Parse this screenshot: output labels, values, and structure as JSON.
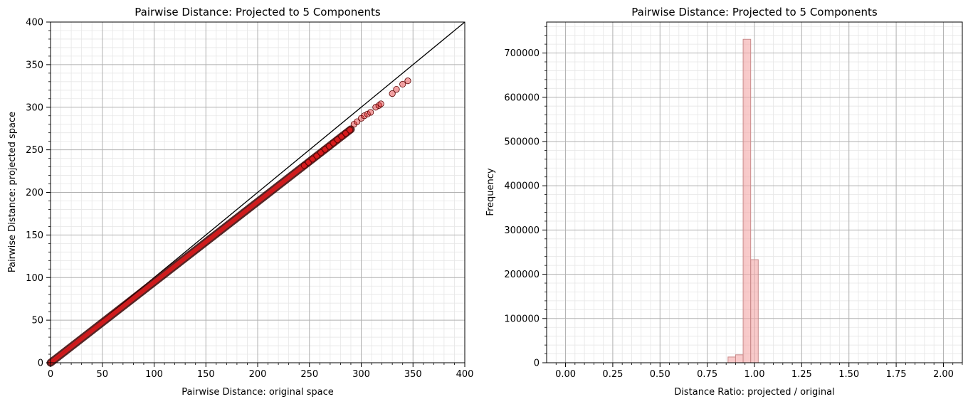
{
  "chart_data": [
    {
      "type": "scatter",
      "title": "Pairwise Distance: Projected to 5 Components",
      "xlabel": "Pairwise Distance: original space",
      "ylabel": "Pairwise Distance: projected space",
      "xlim": [
        0,
        400
      ],
      "ylim": [
        0,
        400
      ],
      "xticks": [
        "0",
        "50",
        "100",
        "150",
        "200",
        "250",
        "300",
        "350",
        "400"
      ],
      "yticks": [
        "0",
        "50",
        "100",
        "150",
        "200",
        "250",
        "300",
        "350",
        "400"
      ],
      "grid": true,
      "minor_grid": true,
      "reference_line": {
        "x": [
          0,
          400
        ],
        "y": [
          0,
          400
        ],
        "color": "#000000"
      },
      "point_color": "#e41a1c",
      "point_edge_color": "#5a0000",
      "band": {
        "x_start": 0,
        "x_end": 290,
        "slope": 0.945
      },
      "outliers": [
        {
          "x": 293,
          "y": 280
        },
        {
          "x": 296,
          "y": 283
        },
        {
          "x": 300,
          "y": 287
        },
        {
          "x": 303,
          "y": 290
        },
        {
          "x": 306,
          "y": 292
        },
        {
          "x": 309,
          "y": 294
        },
        {
          "x": 314,
          "y": 300
        },
        {
          "x": 317,
          "y": 302
        },
        {
          "x": 319,
          "y": 304
        },
        {
          "x": 330,
          "y": 316
        },
        {
          "x": 334,
          "y": 321
        },
        {
          "x": 340,
          "y": 327
        },
        {
          "x": 345,
          "y": 331
        }
      ]
    },
    {
      "type": "bar",
      "title": "Pairwise Distance: Projected to 5 Components",
      "xlabel": "Distance Ratio: projected / original",
      "ylabel": "Frequency",
      "xlim": [
        -0.1,
        2.1
      ],
      "ylim": [
        0,
        770000
      ],
      "xticks": [
        "0.00",
        "0.25",
        "0.50",
        "0.75",
        "1.00",
        "1.25",
        "1.50",
        "1.75",
        "2.00"
      ],
      "xtick_values": [
        0,
        0.25,
        0.5,
        0.75,
        1.0,
        1.25,
        1.5,
        1.75,
        2.0
      ],
      "yticks": [
        "0",
        "100000",
        "200000",
        "300000",
        "400000",
        "500000",
        "600000",
        "700000"
      ],
      "ytick_values": [
        0,
        100000,
        200000,
        300000,
        400000,
        500000,
        600000,
        700000
      ],
      "grid": true,
      "minor_grid": true,
      "bar_color": "#f4a6a6",
      "bar_edge_color": "#c98a8a",
      "bin_width": 0.04,
      "bins": [
        {
          "x0": 0.86,
          "x1": 0.9,
          "value": 13000
        },
        {
          "x0": 0.9,
          "x1": 0.94,
          "value": 18000
        },
        {
          "x0": 0.94,
          "x1": 0.98,
          "value": 731000
        },
        {
          "x0": 0.98,
          "x1": 1.02,
          "value": 233000
        }
      ]
    }
  ]
}
